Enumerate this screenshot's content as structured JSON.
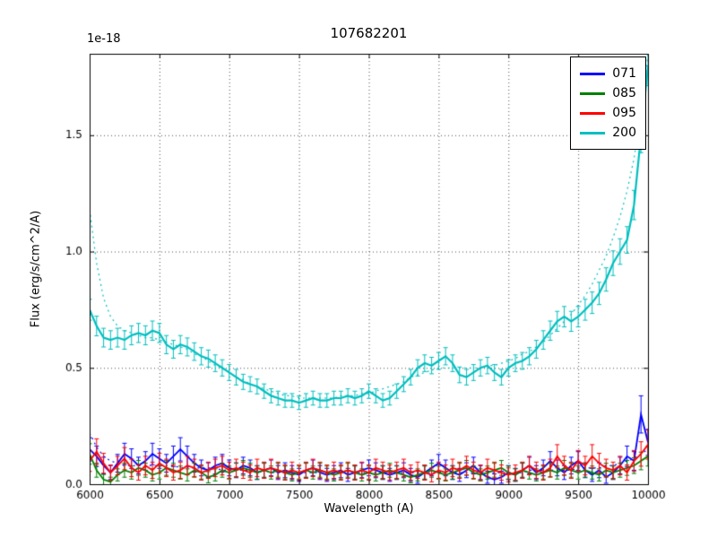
{
  "figure": {
    "offset_text": "1e-18"
  },
  "legend": {
    "position": "upper right",
    "items": [
      {
        "label": "071",
        "color": "#0000ff"
      },
      {
        "label": "085",
        "color": "#008000"
      },
      {
        "label": "095",
        "color": "#ff0000"
      },
      {
        "label": "200",
        "color": "#00bfbf"
      }
    ]
  },
  "chart_data": {
    "type": "line",
    "title": "107682201",
    "xlabel": "Wavelength (A)",
    "ylabel": "Flux (erg/s/cm^2/A)",
    "y_offset_factor": "1e-18",
    "xlim": [
      6000,
      10000
    ],
    "ylim": [
      0,
      1.85
    ],
    "x_ticks": [
      6000,
      6500,
      7000,
      7500,
      8000,
      8500,
      9000,
      9500,
      10000
    ],
    "x_tick_labels": [
      "6000",
      "6500",
      "7000",
      "7500",
      "8000",
      "8500",
      "9000",
      "9500",
      "10000"
    ],
    "y_ticks": [
      0.0,
      0.5,
      1.0,
      1.5
    ],
    "y_tick_labels": [
      "0.0",
      "0.5",
      "1.0",
      "1.5"
    ],
    "grid": true,
    "legend_position": "upper right",
    "x_start": 6000,
    "x_step": 50,
    "series": [
      {
        "name": "071-model",
        "color": "#0000ff",
        "style": "dotted",
        "err_base": 0,
        "err_frac": 0,
        "width": 1.2,
        "values": [
          0.22,
          0.16,
          0.12,
          0.1,
          0.09,
          0.08,
          0.08,
          0.08,
          0.08,
          0.08,
          0.08,
          0.08,
          0.08,
          0.07,
          0.07,
          0.07,
          0.07,
          0.07,
          0.07,
          0.06,
          0.06,
          0.06,
          0.06,
          0.06,
          0.06,
          0.06,
          0.05,
          0.05,
          0.05,
          0.05,
          0.05,
          0.05,
          0.05,
          0.05,
          0.05,
          0.05,
          0.05,
          0.05,
          0.05,
          0.05,
          0.05,
          0.05,
          0.05,
          0.05,
          0.05,
          0.05,
          0.05,
          0.05,
          0.05,
          0.05,
          0.05,
          0.05,
          0.05,
          0.05,
          0.05,
          0.05,
          0.05,
          0.05,
          0.05,
          0.05,
          0.05,
          0.05,
          0.05,
          0.06,
          0.06,
          0.06,
          0.06,
          0.06,
          0.06,
          0.06,
          0.07,
          0.07,
          0.07,
          0.07,
          0.08,
          0.08,
          0.09,
          0.1,
          0.11,
          0.13,
          0.15
        ]
      },
      {
        "name": "071",
        "color": "#0000ff",
        "style": "solid",
        "err_base": 0.02,
        "err_frac": 0.2,
        "width": 1.8,
        "values": [
          0.15,
          0.12,
          0.08,
          0.05,
          0.09,
          0.13,
          0.11,
          0.08,
          0.1,
          0.13,
          0.11,
          0.09,
          0.12,
          0.15,
          0.12,
          0.09,
          0.07,
          0.06,
          0.08,
          0.09,
          0.07,
          0.06,
          0.08,
          0.07,
          0.05,
          0.06,
          0.07,
          0.05,
          0.06,
          0.05,
          0.04,
          0.06,
          0.07,
          0.05,
          0.04,
          0.05,
          0.06,
          0.04,
          0.05,
          0.06,
          0.07,
          0.06,
          0.05,
          0.04,
          0.05,
          0.06,
          0.04,
          0.03,
          0.05,
          0.07,
          0.09,
          0.07,
          0.05,
          0.04,
          0.06,
          0.08,
          0.05,
          0.03,
          0.02,
          0.03,
          0.05,
          0.04,
          0.06,
          0.08,
          0.05,
          0.07,
          0.1,
          0.07,
          0.05,
          0.08,
          0.1,
          0.06,
          0.04,
          0.06,
          0.03,
          0.05,
          0.08,
          0.12,
          0.1,
          0.3,
          0.18
        ]
      },
      {
        "name": "085",
        "color": "#008000",
        "style": "solid",
        "err_base": 0.018,
        "err_frac": 0.2,
        "width": 1.8,
        "values": [
          0.13,
          0.06,
          0.02,
          0.01,
          0.04,
          0.06,
          0.05,
          0.07,
          0.06,
          0.04,
          0.05,
          0.07,
          0.06,
          0.05,
          0.04,
          0.06,
          0.05,
          0.03,
          0.04,
          0.06,
          0.05,
          0.06,
          0.07,
          0.06,
          0.05,
          0.06,
          0.05,
          0.06,
          0.05,
          0.04,
          0.05,
          0.06,
          0.05,
          0.06,
          0.05,
          0.04,
          0.05,
          0.06,
          0.05,
          0.04,
          0.05,
          0.04,
          0.05,
          0.06,
          0.05,
          0.04,
          0.03,
          0.04,
          0.05,
          0.06,
          0.05,
          0.04,
          0.05,
          0.06,
          0.07,
          0.05,
          0.04,
          0.05,
          0.06,
          0.07,
          0.05,
          0.04,
          0.06,
          0.05,
          0.04,
          0.05,
          0.06,
          0.05,
          0.07,
          0.06,
          0.05,
          0.06,
          0.05,
          0.04,
          0.06,
          0.05,
          0.06,
          0.07,
          0.08,
          0.1,
          0.12
        ]
      },
      {
        "name": "095",
        "color": "#ff0000",
        "style": "solid",
        "err_base": 0.02,
        "err_frac": 0.25,
        "width": 1.8,
        "values": [
          0.1,
          0.14,
          0.09,
          0.05,
          0.08,
          0.11,
          0.07,
          0.05,
          0.08,
          0.06,
          0.09,
          0.07,
          0.05,
          0.06,
          0.08,
          0.07,
          0.05,
          0.06,
          0.07,
          0.08,
          0.06,
          0.07,
          0.06,
          0.05,
          0.07,
          0.06,
          0.07,
          0.06,
          0.05,
          0.06,
          0.05,
          0.06,
          0.07,
          0.06,
          0.05,
          0.06,
          0.05,
          0.06,
          0.05,
          0.06,
          0.05,
          0.07,
          0.06,
          0.05,
          0.06,
          0.07,
          0.05,
          0.06,
          0.05,
          0.04,
          0.06,
          0.05,
          0.07,
          0.06,
          0.08,
          0.06,
          0.05,
          0.07,
          0.06,
          0.05,
          0.04,
          0.05,
          0.06,
          0.08,
          0.06,
          0.05,
          0.07,
          0.12,
          0.08,
          0.06,
          0.1,
          0.08,
          0.12,
          0.09,
          0.07,
          0.06,
          0.08,
          0.05,
          0.1,
          0.13,
          0.17
        ]
      },
      {
        "name": "200-model",
        "color": "#00bfbf",
        "style": "dotted",
        "err_base": 0,
        "err_frac": 0,
        "width": 1.2,
        "values": [
          1.18,
          0.95,
          0.8,
          0.72,
          0.68,
          0.66,
          0.65,
          0.64,
          0.63,
          0.63,
          0.62,
          0.61,
          0.6,
          0.59,
          0.58,
          0.56,
          0.55,
          0.53,
          0.51,
          0.5,
          0.48,
          0.46,
          0.45,
          0.43,
          0.42,
          0.41,
          0.4,
          0.39,
          0.38,
          0.38,
          0.37,
          0.37,
          0.37,
          0.37,
          0.37,
          0.37,
          0.38,
          0.38,
          0.38,
          0.39,
          0.39,
          0.4,
          0.41,
          0.42,
          0.43,
          0.44,
          0.46,
          0.47,
          0.48,
          0.49,
          0.5,
          0.5,
          0.5,
          0.5,
          0.5,
          0.5,
          0.5,
          0.51,
          0.51,
          0.52,
          0.53,
          0.54,
          0.56,
          0.57,
          0.59,
          0.61,
          0.64,
          0.67,
          0.7,
          0.73,
          0.77,
          0.81,
          0.86,
          0.92,
          0.98,
          1.06,
          1.15,
          1.26,
          1.4,
          1.6,
          1.85
        ]
      },
      {
        "name": "200",
        "color": "#00bfbf",
        "style": "solid",
        "err_base": 0.015,
        "err_frac": 0.04,
        "width": 2.2,
        "values": [
          0.75,
          0.68,
          0.63,
          0.62,
          0.63,
          0.62,
          0.64,
          0.65,
          0.64,
          0.66,
          0.65,
          0.6,
          0.58,
          0.6,
          0.59,
          0.57,
          0.55,
          0.54,
          0.52,
          0.5,
          0.48,
          0.46,
          0.44,
          0.43,
          0.42,
          0.4,
          0.38,
          0.37,
          0.36,
          0.36,
          0.35,
          0.36,
          0.37,
          0.36,
          0.36,
          0.37,
          0.37,
          0.38,
          0.37,
          0.38,
          0.4,
          0.38,
          0.36,
          0.37,
          0.4,
          0.43,
          0.46,
          0.5,
          0.52,
          0.51,
          0.53,
          0.55,
          0.52,
          0.47,
          0.46,
          0.48,
          0.5,
          0.51,
          0.48,
          0.46,
          0.5,
          0.52,
          0.53,
          0.55,
          0.58,
          0.62,
          0.66,
          0.7,
          0.72,
          0.7,
          0.72,
          0.75,
          0.78,
          0.82,
          0.88,
          0.95,
          1.0,
          1.05,
          1.2,
          1.5,
          1.8
        ]
      }
    ]
  }
}
